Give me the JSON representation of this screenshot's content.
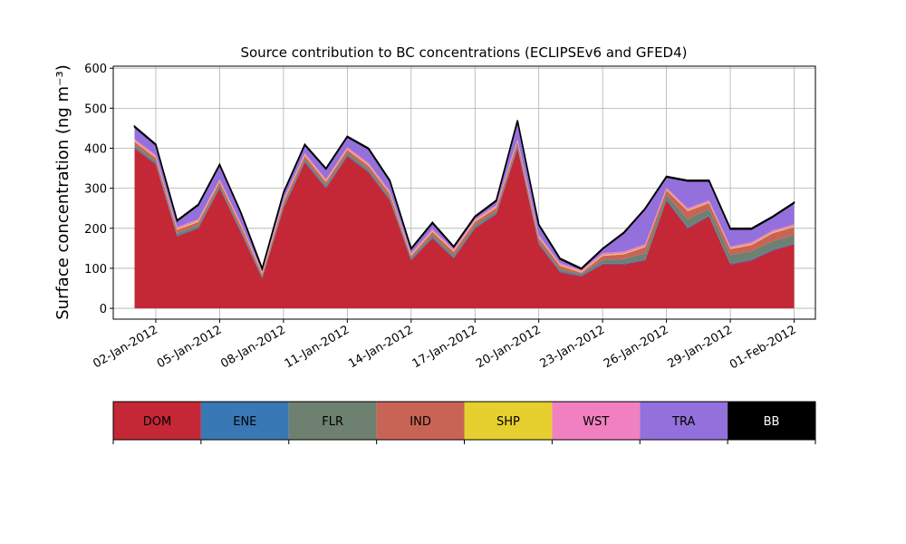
{
  "chart_data": {
    "type": "stacked_area",
    "title": "Source contribution to BC concentrations (ECLIPSEv6 and GFED4)",
    "y_label": "Surface concentration (ng m⁻³)",
    "x": [
      "2012-01-01",
      "2012-01-02",
      "2012-01-03",
      "2012-01-04",
      "2012-01-05",
      "2012-01-06",
      "2012-01-07",
      "2012-01-08",
      "2012-01-09",
      "2012-01-10",
      "2012-01-11",
      "2012-01-12",
      "2012-01-13",
      "2012-01-14",
      "2012-01-15",
      "2012-01-16",
      "2012-01-17",
      "2012-01-18",
      "2012-01-19",
      "2012-01-20",
      "2012-01-21",
      "2012-01-22",
      "2012-01-23",
      "2012-01-24",
      "2012-01-25",
      "2012-01-26",
      "2012-01-27",
      "2012-01-28",
      "2012-01-29",
      "2012-01-30",
      "2012-01-31",
      "2012-02-01"
    ],
    "series": [
      {
        "name": "DOM",
        "color": "#c42836",
        "values": [
          400,
          360,
          180,
          200,
          300,
          190,
          75,
          250,
          365,
          300,
          380,
          340,
          270,
          120,
          175,
          125,
          200,
          235,
          400,
          160,
          90,
          80,
          110,
          110,
          120,
          270,
          200,
          230,
          110,
          120,
          145,
          160
        ]
      },
      {
        "name": "ENE",
        "color": "#3878b4",
        "values": [
          3,
          3,
          3,
          3,
          3,
          3,
          3,
          3,
          3,
          3,
          3,
          3,
          3,
          3,
          3,
          3,
          3,
          3,
          3,
          3,
          3,
          3,
          3,
          3,
          3,
          3,
          3,
          3,
          3,
          3,
          3,
          3
        ]
      },
      {
        "name": "FLR",
        "color": "#6e8070",
        "values": [
          5,
          5,
          5,
          5,
          5,
          5,
          3,
          5,
          5,
          5,
          5,
          5,
          5,
          3,
          5,
          5,
          5,
          5,
          5,
          5,
          5,
          3,
          8,
          10,
          15,
          10,
          20,
          15,
          20,
          20,
          20,
          20
        ]
      },
      {
        "name": "IND",
        "color": "#c86456",
        "values": [
          8,
          8,
          8,
          8,
          8,
          8,
          5,
          8,
          8,
          8,
          8,
          8,
          8,
          5,
          8,
          8,
          8,
          8,
          8,
          8,
          8,
          3,
          10,
          12,
          15,
          12,
          20,
          15,
          15,
          15,
          20,
          20
        ]
      },
      {
        "name": "SHP",
        "color": "#e6d030",
        "values": [
          2,
          2,
          2,
          2,
          2,
          2,
          2,
          2,
          2,
          2,
          2,
          2,
          2,
          2,
          2,
          2,
          2,
          2,
          2,
          2,
          2,
          2,
          2,
          2,
          2,
          2,
          2,
          2,
          2,
          2,
          2,
          2
        ]
      },
      {
        "name": "WST",
        "color": "#f080c0",
        "values": [
          5,
          5,
          5,
          5,
          5,
          5,
          5,
          5,
          5,
          5,
          5,
          5,
          5,
          5,
          5,
          5,
          5,
          5,
          5,
          5,
          5,
          5,
          5,
          5,
          5,
          5,
          5,
          5,
          5,
          5,
          5,
          5
        ]
      },
      {
        "name": "TRA",
        "color": "#9370db",
        "values": [
          30,
          25,
          15,
          35,
          35,
          25,
          5,
          15,
          20,
          25,
          25,
          35,
          25,
          10,
          15,
          5,
          5,
          10,
          45,
          25,
          10,
          2,
          10,
          46,
          88,
          26,
          68,
          48,
          43,
          33,
          33,
          53
        ]
      },
      {
        "name": "BB",
        "color": "#000000",
        "values": [
          2,
          2,
          2,
          2,
          2,
          2,
          2,
          2,
          2,
          2,
          2,
          2,
          2,
          2,
          2,
          2,
          2,
          2,
          2,
          2,
          2,
          2,
          2,
          2,
          2,
          2,
          2,
          2,
          2,
          2,
          2,
          2
        ]
      }
    ],
    "xlim": [
      "2011-12-31",
      "2012-02-02"
    ],
    "xticks": [
      {
        "value": "2012-01-02",
        "label": "02-Jan-2012"
      },
      {
        "value": "2012-01-05",
        "label": "05-Jan-2012"
      },
      {
        "value": "2012-01-08",
        "label": "08-Jan-2012"
      },
      {
        "value": "2012-01-11",
        "label": "11-Jan-2012"
      },
      {
        "value": "2012-01-14",
        "label": "14-Jan-2012"
      },
      {
        "value": "2012-01-17",
        "label": "17-Jan-2012"
      },
      {
        "value": "2012-01-20",
        "label": "20-Jan-2012"
      },
      {
        "value": "2012-01-23",
        "label": "23-Jan-2012"
      },
      {
        "value": "2012-01-26",
        "label": "26-Jan-2012"
      },
      {
        "value": "2012-01-29",
        "label": "29-Jan-2012"
      },
      {
        "value": "2012-02-01",
        "label": "01-Feb-2012"
      }
    ],
    "ylim": [
      -27,
      605
    ],
    "yticks": [
      0,
      100,
      200,
      300,
      400,
      500,
      600
    ],
    "grid": true,
    "legend": "bottom"
  }
}
